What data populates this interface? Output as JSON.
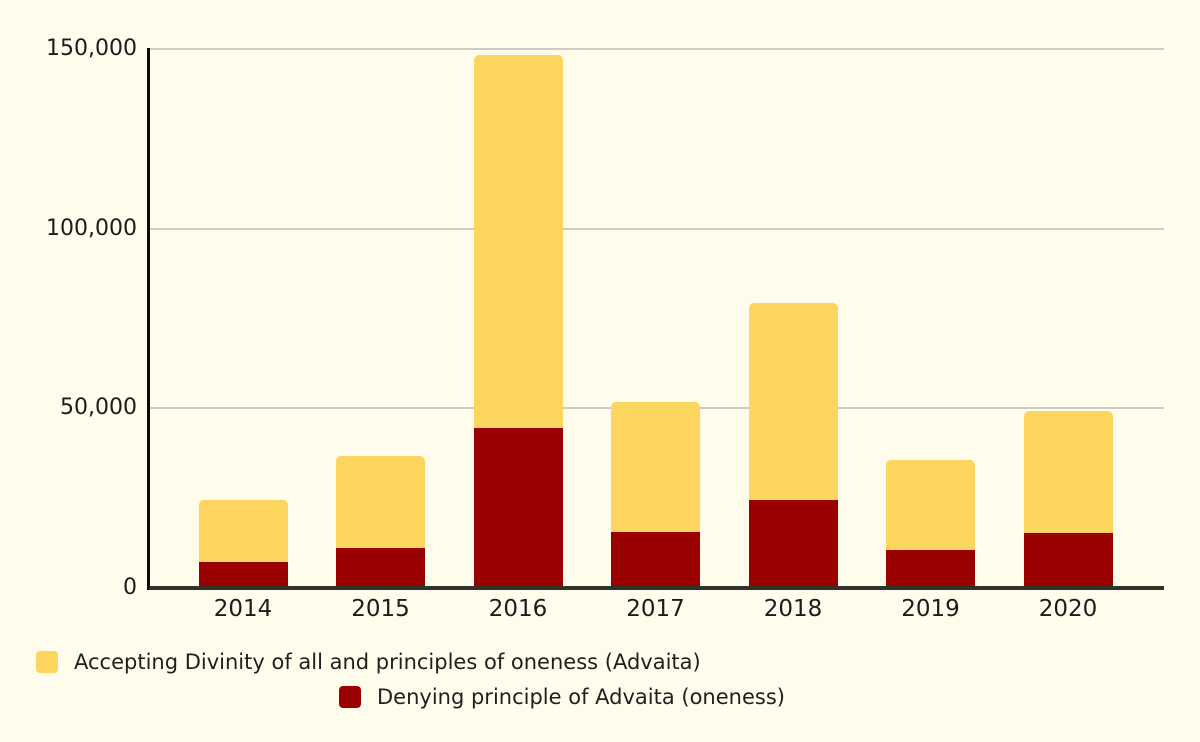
{
  "background_color": "#FFFCEB",
  "chart_data": {
    "type": "bar",
    "stacked": true,
    "title": "",
    "xlabel": "",
    "ylabel": "",
    "categories": [
      "2014",
      "2015",
      "2016",
      "2017",
      "2018",
      "2019",
      "2020"
    ],
    "series": [
      {
        "name": "Accepting Divinity of all and principles of oneness (Advaita)",
        "color": "#FCD55F",
        "stack_order": "top",
        "values": [
          17200,
          25700,
          103900,
          36200,
          54900,
          25100,
          34000
        ]
      },
      {
        "name": "Denying principle of Advaita (oneness)",
        "color": "#9A0202",
        "stack_order": "bottom",
        "values": [
          7200,
          11000,
          44500,
          15500,
          24500,
          10500,
          15300
        ]
      }
    ],
    "ylim": [
      0,
      150000
    ],
    "yticks": [
      0,
      50000,
      100000,
      150000
    ],
    "ytick_labels": [
      "0",
      "50,000",
      "100,000",
      "150,000"
    ],
    "grid": true,
    "legend_position": "bottom",
    "colors": {
      "gridline": "#CCCCC2",
      "x_axis_line": "#32322C",
      "y_axis_line": "#0A0A0A",
      "tick_text": "#1C1C1C"
    }
  },
  "legend": {
    "items": [
      {
        "label": "Accepting Divinity of all and principles of oneness (Advaita)",
        "color": "#FCD55F"
      },
      {
        "label": "Denying principle of Advaita (oneness)",
        "color": "#9A0202"
      }
    ]
  }
}
